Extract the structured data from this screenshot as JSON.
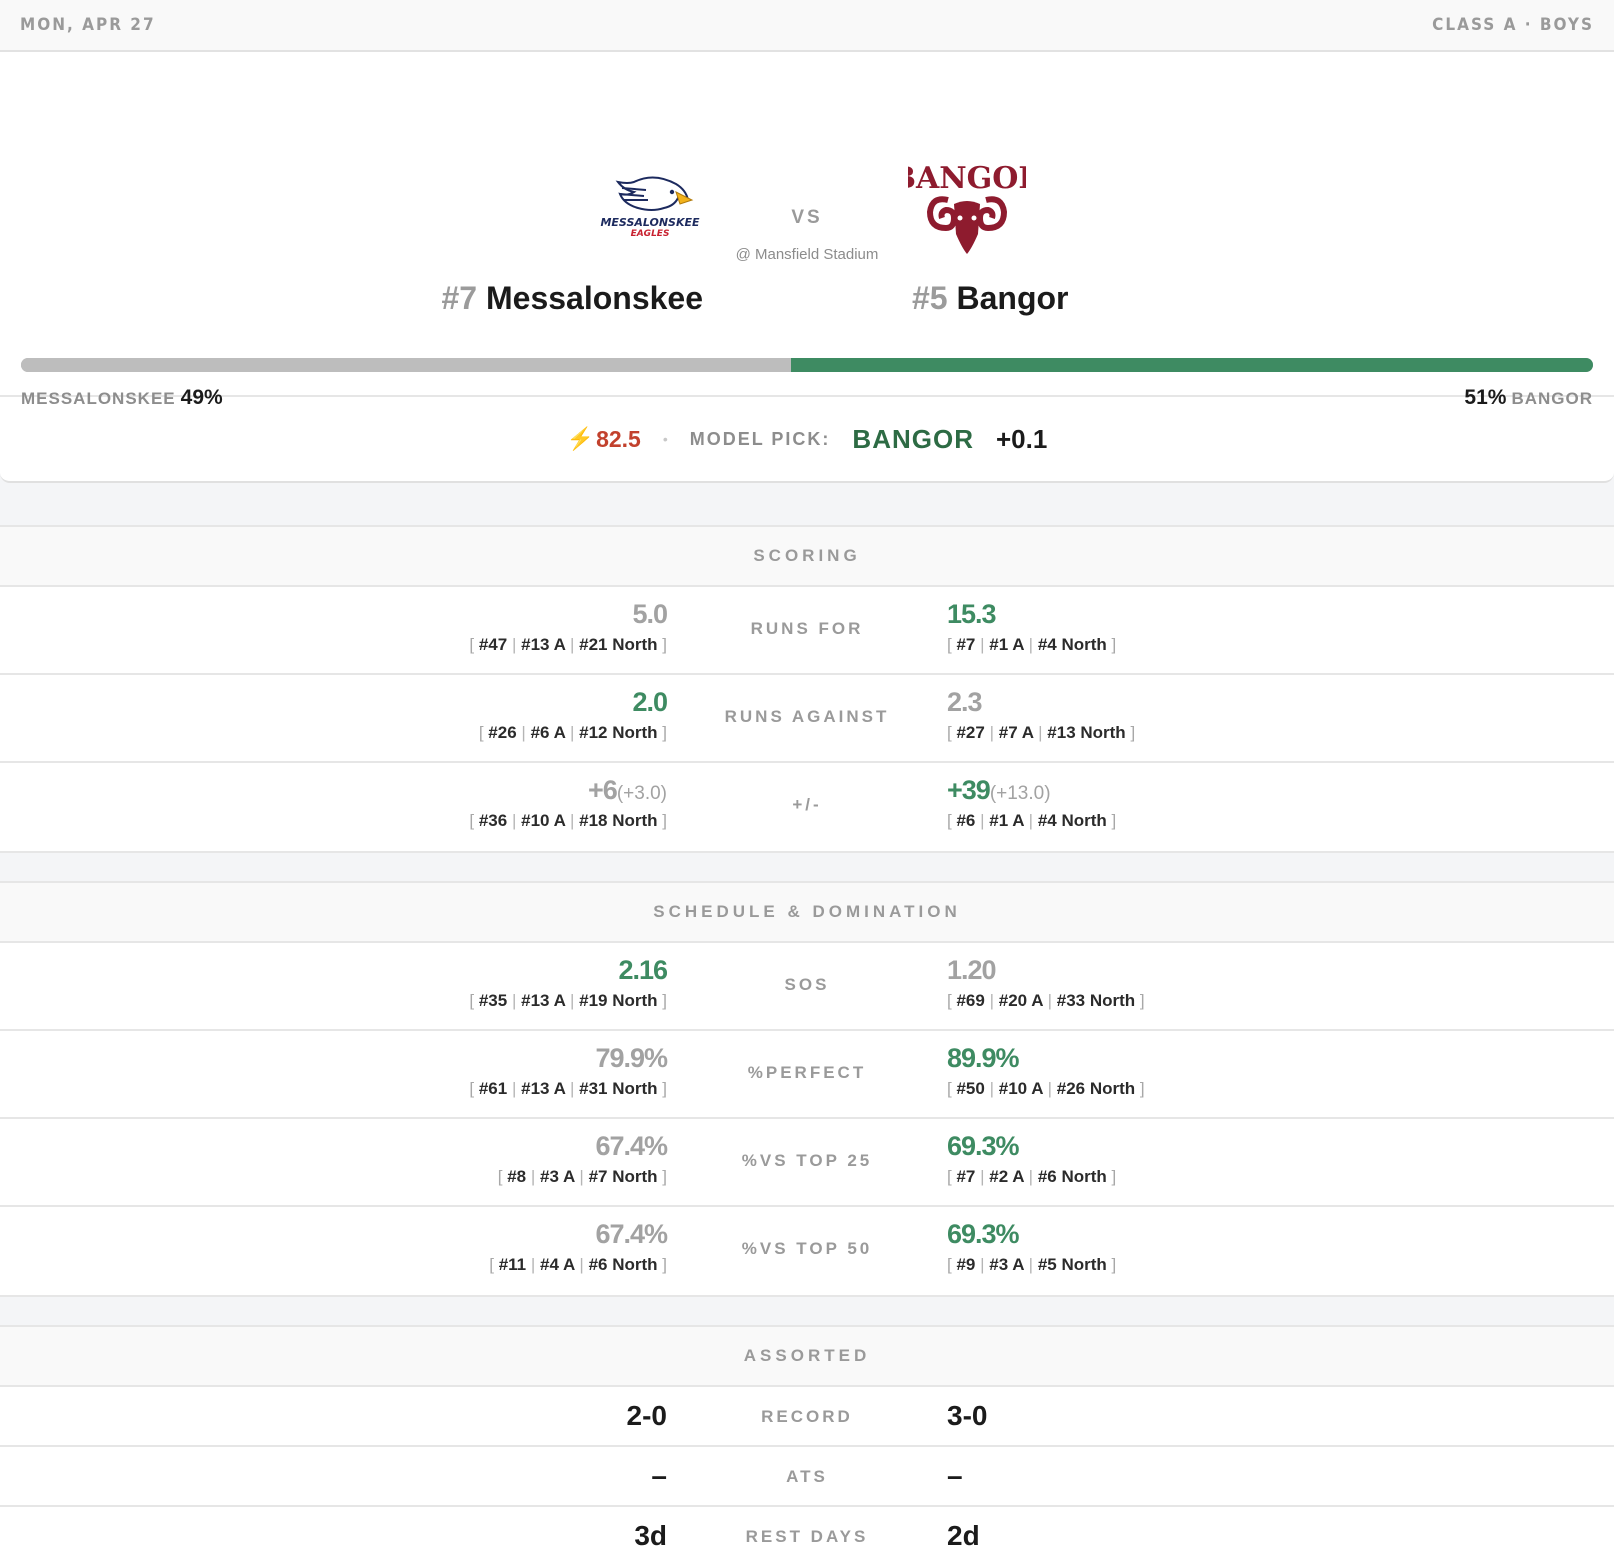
{
  "header": {
    "date": "MON, APR 27",
    "division": "CLASS A · BOYS"
  },
  "matchup": {
    "vs": "VS",
    "venue": "@ Mansfield Stadium",
    "away": {
      "rank": "#7",
      "name": "Messalonskee",
      "logo_text_1": "MESSALONSKEE",
      "logo_text_2": "EAGLES",
      "prob_label": "MESSALONSKEE",
      "prob_value": "49%",
      "prob": 49
    },
    "home": {
      "rank": "#5",
      "name": "Bangor",
      "logo_text": "BANGOR",
      "prob_label": "BANGOR",
      "prob_value": "51%",
      "prob": 51
    },
    "colors": {
      "home_bar": "#3e8b62",
      "away_bar": "#bdbdbd"
    }
  },
  "pick": {
    "icon": "lightning-icon",
    "rating": "82.5",
    "label": "MODEL PICK:",
    "team": "BANGOR",
    "line": "+0.1"
  },
  "scoring": {
    "title": "SCORING",
    "rows": [
      {
        "label": "RUNS FOR",
        "left": {
          "value": "5.0",
          "sub": "",
          "r1": "#47",
          "r2": "#13 A",
          "r3": "#21 North"
        },
        "right": {
          "value": "15.3",
          "sub": "",
          "r1": "#7",
          "r2": "#1 A",
          "r3": "#4 North"
        }
      },
      {
        "label": "RUNS AGAINST",
        "left": {
          "value": "2.0",
          "sub": "",
          "r1": "#26",
          "r2": "#6 A",
          "r3": "#12 North"
        },
        "right": {
          "value": "2.3",
          "sub": "",
          "r1": "#27",
          "r2": "#7 A",
          "r3": "#13 North"
        }
      },
      {
        "label": "+/-",
        "left": {
          "value": "+6",
          "sub": "(+3.0)",
          "r1": "#36",
          "r2": "#10 A",
          "r3": "#18 North"
        },
        "right": {
          "value": "+39",
          "sub": "(+13.0)",
          "r1": "#6",
          "r2": "#1 A",
          "r3": "#4 North"
        }
      }
    ]
  },
  "schedule": {
    "title": "SCHEDULE & DOMINATION",
    "rows": [
      {
        "label": "SOS",
        "left": {
          "value": "2.16",
          "r1": "#35",
          "r2": "#13 A",
          "r3": "#19 North"
        },
        "right": {
          "value": "1.20",
          "r1": "#69",
          "r2": "#20 A",
          "r3": "#33 North"
        }
      },
      {
        "label": "%PERFECT",
        "left": {
          "value": "79.9%",
          "r1": "#61",
          "r2": "#13 A",
          "r3": "#31 North"
        },
        "right": {
          "value": "89.9%",
          "r1": "#50",
          "r2": "#10 A",
          "r3": "#26 North"
        }
      },
      {
        "label": "%VS TOP 25",
        "left": {
          "value": "67.4%",
          "r1": "#8",
          "r2": "#3 A",
          "r3": "#7 North"
        },
        "right": {
          "value": "69.3%",
          "r1": "#7",
          "r2": "#2 A",
          "r3": "#6 North"
        }
      },
      {
        "label": "%VS TOP 50",
        "left": {
          "value": "67.4%",
          "r1": "#11",
          "r2": "#4 A",
          "r3": "#6 North"
        },
        "right": {
          "value": "69.3%",
          "r1": "#9",
          "r2": "#3 A",
          "r3": "#5 North"
        }
      }
    ]
  },
  "assorted": {
    "title": "ASSORTED",
    "rows": [
      {
        "label": "RECORD",
        "left": "2-0",
        "right": "3-0"
      },
      {
        "label": "ATS",
        "left": "–",
        "right": "–"
      },
      {
        "label": "REST DAYS",
        "left": "3d",
        "right": "2d"
      }
    ]
  },
  "brackets": {
    "open": "[",
    "close": "]",
    "sep": "|"
  }
}
